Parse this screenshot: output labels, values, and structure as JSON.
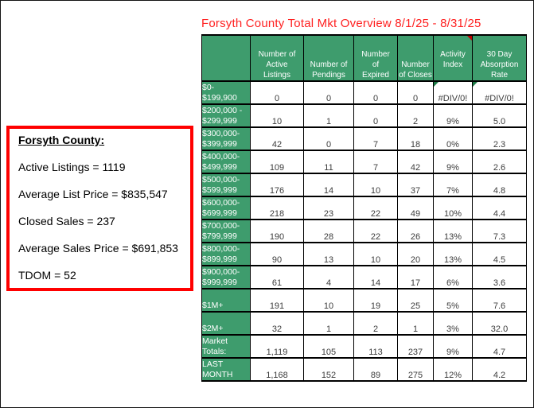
{
  "title": "Forsyth County Total Mkt Overview 8/1/25 - 8/31/25",
  "summary_box": {
    "heading": "Forsyth County:",
    "lines": [
      "Active Listings = 1119",
      "Average List Price = $835,547",
      "Closed Sales = 237",
      "Average Sales Price = $691,853",
      "TDOM = 52"
    ]
  },
  "table": {
    "columns": [
      "",
      "Number of\nActive\nListings",
      "Number of\nPendings",
      "Number\nof\nExpired",
      "Number\nof Closes",
      "Activity\nIndex",
      "30 Day\nAbsorption\nRate"
    ],
    "rows": [
      {
        "label": "$0-\n$199,900",
        "values": [
          "0",
          "0",
          "0",
          "0",
          "#DIV/0!",
          "#DIV/0!"
        ]
      },
      {
        "label": "$200,000 -\n$299,999",
        "values": [
          "10",
          "1",
          "0",
          "2",
          "9%",
          "5.0"
        ]
      },
      {
        "label": "$300,000-\n$399,999",
        "values": [
          "42",
          "0",
          "7",
          "18",
          "0%",
          "2.3"
        ]
      },
      {
        "label": "$400,000-\n$499,999",
        "values": [
          "109",
          "11",
          "7",
          "42",
          "9%",
          "2.6"
        ]
      },
      {
        "label": "$500,000-\n$599,999",
        "values": [
          "176",
          "14",
          "10",
          "37",
          "7%",
          "4.8"
        ]
      },
      {
        "label": "$600,000-\n$699,999",
        "values": [
          "218",
          "23",
          "22",
          "49",
          "10%",
          "4.4"
        ]
      },
      {
        "label": "$700,000-\n$799,999",
        "values": [
          "190",
          "28",
          "22",
          "26",
          "13%",
          "7.3"
        ]
      },
      {
        "label": "$800,000-\n$899,999",
        "values": [
          "90",
          "13",
          "10",
          "20",
          "13%",
          "4.5"
        ]
      },
      {
        "label": "$900,000-\n$999,999",
        "values": [
          "61",
          "4",
          "14",
          "17",
          "6%",
          "3.6"
        ]
      },
      {
        "label": "$1M+",
        "values": [
          "191",
          "10",
          "19",
          "25",
          "5%",
          "7.6"
        ]
      },
      {
        "label": "$2M+",
        "values": [
          "32",
          "1",
          "2",
          "1",
          "3%",
          "32.0"
        ]
      },
      {
        "label": "Market\nTotals:",
        "values": [
          "1,119",
          "105",
          "113",
          "237",
          "9%",
          "4.7"
        ]
      },
      {
        "label": "LAST\nMONTH",
        "values": [
          "1,168",
          "152",
          "89",
          "275",
          "12%",
          "4.2"
        ]
      }
    ],
    "error_value": "#DIV/0!"
  },
  "icons": {
    "comment_indicator": "red top-right corner triangle on Activity Index header",
    "error_indicator": "green top-left corner triangle on #DIV/0! cells"
  },
  "colors": {
    "header_green": "#3E9C6D",
    "title_red": "#FF2020",
    "box_border_red": "#FF0000",
    "error_indicator_green": "#1E7B47",
    "comment_indicator_red": "#C00000",
    "data_text": "#3C3C3C"
  }
}
